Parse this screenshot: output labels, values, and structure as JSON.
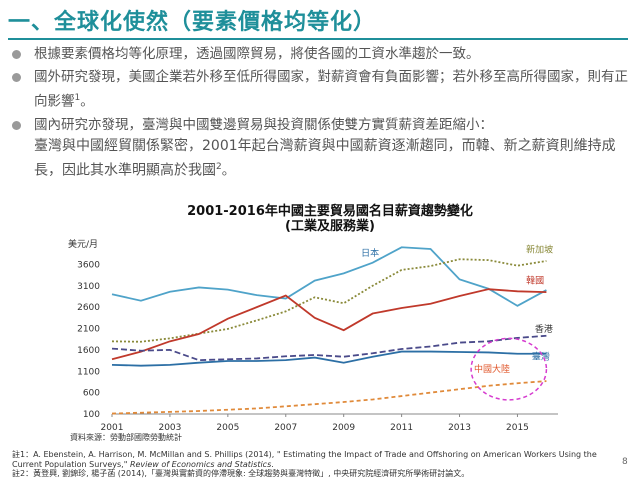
{
  "title": "一、全球化使然（要素價格均等化）",
  "bullets": [
    {
      "text": "根據要素價格均等化原理，透過國際貿易，將使各國的工資水準趨於一致。"
    },
    {
      "text": "國外研究發現，美國企業若外移至低所得國家，對薪資會有負面影響；若外移至高所得國家，則有正向影響",
      "sup": "1",
      "tail": "。"
    },
    {
      "text": "國內研究亦發現，臺灣與中國雙邊貿易與投資關係使雙方實質薪資差距縮小：",
      "line2": "臺灣與中國經貿關係緊密，2001年起台灣薪資與中國薪資逐漸趨同，而韓、新之薪資則維持成長，因此其水準明顯高於我國",
      "sup": "2",
      "tail": "。"
    }
  ],
  "chart_data": {
    "type": "line",
    "title": "2001-2016年中國主要貿易國名目薪資趨勢變化",
    "subtitle": "(工業及服務業)",
    "ylabel": "美元/月",
    "ylim": [
      100,
      4100
    ],
    "yticks": [
      100,
      600,
      1100,
      1600,
      2100,
      2600,
      3100,
      3600
    ],
    "xticks": [
      "2001",
      "2003",
      "2005",
      "2007",
      "2009",
      "2011",
      "2013",
      "2015"
    ],
    "x": [
      2001,
      2002,
      2003,
      2004,
      2005,
      2006,
      2007,
      2008,
      2009,
      2010,
      2011,
      2012,
      2013,
      2014,
      2015,
      2016
    ],
    "series": [
      {
        "name": "日本",
        "color": "#4fa3c9",
        "dash": "",
        "values": [
          2900,
          2750,
          2960,
          3060,
          3010,
          2880,
          2800,
          3220,
          3390,
          3640,
          4000,
          3960,
          3250,
          3030,
          2630,
          3000
        ]
      },
      {
        "name": "新加坡",
        "color": "#8a8a3a",
        "dash": "2,2",
        "values": [
          1800,
          1790,
          1870,
          1980,
          2090,
          2290,
          2500,
          2830,
          2690,
          3100,
          3470,
          3560,
          3720,
          3700,
          3570,
          3680
        ]
      },
      {
        "name": "韓國",
        "color": "#c0392b",
        "dash": "",
        "values": [
          1380,
          1560,
          1800,
          1970,
          2330,
          2600,
          2870,
          2350,
          2060,
          2450,
          2580,
          2680,
          2860,
          3020,
          2970,
          2950
        ]
      },
      {
        "name": "香港",
        "color": "#4a4a8a",
        "dash": "6,3",
        "values": [
          1630,
          1580,
          1600,
          1360,
          1380,
          1400,
          1450,
          1480,
          1440,
          1520,
          1620,
          1680,
          1770,
          1800,
          1880,
          1930
        ]
      },
      {
        "name": "臺灣",
        "color": "#2c6fa5",
        "dash": "",
        "values": [
          1250,
          1230,
          1250,
          1300,
          1340,
          1340,
          1360,
          1420,
          1300,
          1440,
          1560,
          1560,
          1550,
          1540,
          1510,
          1510
        ]
      },
      {
        "name": "中國大陸",
        "color": "#e08a3a",
        "dash": "4,3",
        "values": [
          110,
          130,
          150,
          170,
          200,
          230,
          280,
          330,
          380,
          440,
          520,
          600,
          680,
          760,
          820,
          870
        ]
      }
    ],
    "labels": [
      {
        "name": "日本",
        "x": 2009.6,
        "y": 3800,
        "color": "#2c6fa5"
      },
      {
        "name": "新加坡",
        "x": 2015.3,
        "y": 3880,
        "color": "#8a8a3a"
      },
      {
        "name": "韓國",
        "x": 2015.3,
        "y": 3150,
        "color": "#c0392b"
      },
      {
        "name": "香港",
        "x": 2015.6,
        "y": 2020,
        "color": "#333333"
      },
      {
        "name": "臺灣",
        "x": 2015.5,
        "y": 1380,
        "color": "#2c6fa5"
      },
      {
        "name": "中國大陸",
        "x": 2013.5,
        "y": 1080,
        "color": "#e0562a"
      }
    ],
    "ellipse": {
      "cx": 2014.7,
      "cy": 1150,
      "rx_years": 1.3,
      "ry_units": 720,
      "color": "#d63ccf"
    },
    "grid": false
  },
  "source": "資料來源：勞動部國際勞動統計",
  "page_number": "8",
  "notes": [
    {
      "prefix": "註1：A. Ebenstein, A. Harrison, M. McMillan and S. Phillips (2014), \" Estimating the Impact of Trade and Offshoring on American Workers Using the Current Population Surveys,\" ",
      "italic": "Review of Economics and Statistics",
      "suffix": "."
    },
    {
      "prefix": "註2：黃登興, 劉錦珍, 楊子菡 (2014),「臺灣與實薪資的停滯現象: 全球趨勢與臺灣特徵」, 中央研究院經濟研究所學術研討論文。",
      "italic": "",
      "suffix": ""
    }
  ]
}
